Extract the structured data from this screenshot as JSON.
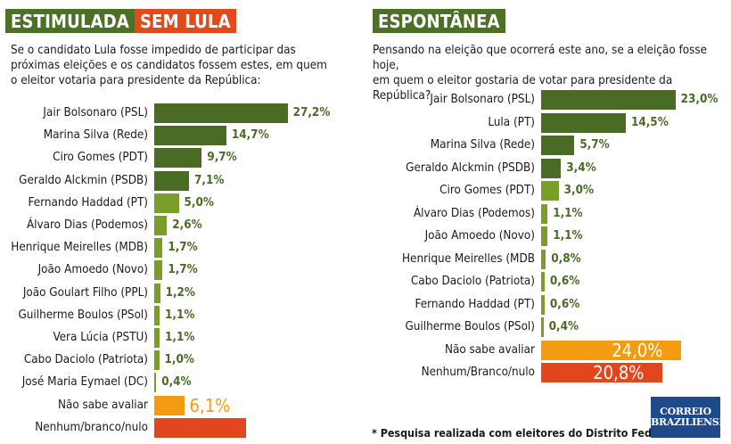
{
  "left": {
    "header": {
      "part1": "ESTIMULADA",
      "part2": "SEM LULA"
    },
    "question": [
      "Se o candidato Lula fosse impedido de participar das",
      "próximas eleições e os candidatos fossem estes, em quem",
      "o eleitor votaria para presidente da República:"
    ]
  },
  "right": {
    "header": {
      "part1": "ESPONTÂNEA"
    },
    "question": [
      "Pensando na eleição que ocorrerá este ano, se a eleição fosse hoje,",
      "em quem o eleitor gostaria de votar para presidente da República?"
    ]
  },
  "colors": {
    "dark_green": "#4a6b24",
    "light_green": "#7a9e2a",
    "orange": "#f39c12",
    "red": "#e2461d",
    "value_green": "#4a6b24"
  },
  "footnote": "* Pesquisa realizada com eleitores do Distrito Federal.",
  "logo": {
    "line1": "CORREIO",
    "line2": "BRAZILIENSE"
  },
  "chart_data": [
    {
      "type": "bar",
      "orientation": "horizontal",
      "title": "ESTIMULADA SEM LULA",
      "categories": [
        "Jair Bolsonaro (PSL)",
        "Marina Silva (Rede)",
        "Ciro Gomes (PDT)",
        "Geraldo Alckmin (PSDB)",
        "Fernando Haddad (PT)",
        "Álvaro Dias (Podemos)",
        "Henrique Meirelles (MDB)",
        "João Amoedo (Novo)",
        "João Goulart Filho (PPL)",
        "Guilherme Boulos (PSol)",
        "Vera Lúcia (PSTU)",
        "Cabo Daciolo (Patriota)",
        "José Maria Eymael (DC)",
        "Não sabe avaliar",
        "Nenhum/branco/nulo"
      ],
      "values": [
        27.2,
        14.7,
        9.7,
        7.1,
        5.0,
        2.6,
        1.7,
        1.7,
        1.2,
        1.1,
        1.1,
        1.0,
        0.4,
        6.1,
        18.7
      ],
      "labels": [
        "27,2%",
        "14,7%",
        "9,7%",
        "7,1%",
        "5,0%",
        "2,6%",
        "1,7%",
        "1,7%",
        "1,2%",
        "1,1%",
        "1,1%",
        "1,0%",
        "0,4%",
        "6,1%",
        ""
      ],
      "styles": [
        "dark",
        "dark",
        "dark",
        "dark",
        "light",
        "light",
        "light",
        "light",
        "light",
        "light",
        "light",
        "light",
        "light",
        "orange",
        "red"
      ],
      "xlabel": "",
      "ylabel": ""
    },
    {
      "type": "bar",
      "orientation": "horizontal",
      "title": "ESPONTÂNEA",
      "categories": [
        "Jair Bolsonaro (PSL)",
        "Lula (PT)",
        "Marina Silva (Rede)",
        "Geraldo Alckmin (PSDB)",
        "Ciro Gomes (PDT)",
        "Álvaro Dias (Podemos)",
        "João Amoedo (Novo)",
        "Henrique Meirelles (MDB",
        "Cabo Daciolo (Patriota)",
        "Fernando Haddad (PT)",
        "Guilherme Boulos (PSol)",
        "Não sabe avaliar",
        "Nenhum/Branco/nulo"
      ],
      "values": [
        23.0,
        14.5,
        5.7,
        3.4,
        3.0,
        1.1,
        1.1,
        0.8,
        0.6,
        0.6,
        0.4,
        24.0,
        20.8
      ],
      "labels": [
        "23,0%",
        "14,5%",
        "5,7%",
        "3,4%",
        "3,0%",
        "1,1%",
        "1,1%",
        "0,8%",
        "0,6%",
        "0,6%",
        "0,4%",
        "24,0%",
        "20,8%"
      ],
      "styles": [
        "dark",
        "dark",
        "dark",
        "dark",
        "light",
        "light",
        "light",
        "light",
        "light",
        "light",
        "light",
        "orange",
        "red"
      ],
      "xlabel": "",
      "ylabel": ""
    }
  ]
}
